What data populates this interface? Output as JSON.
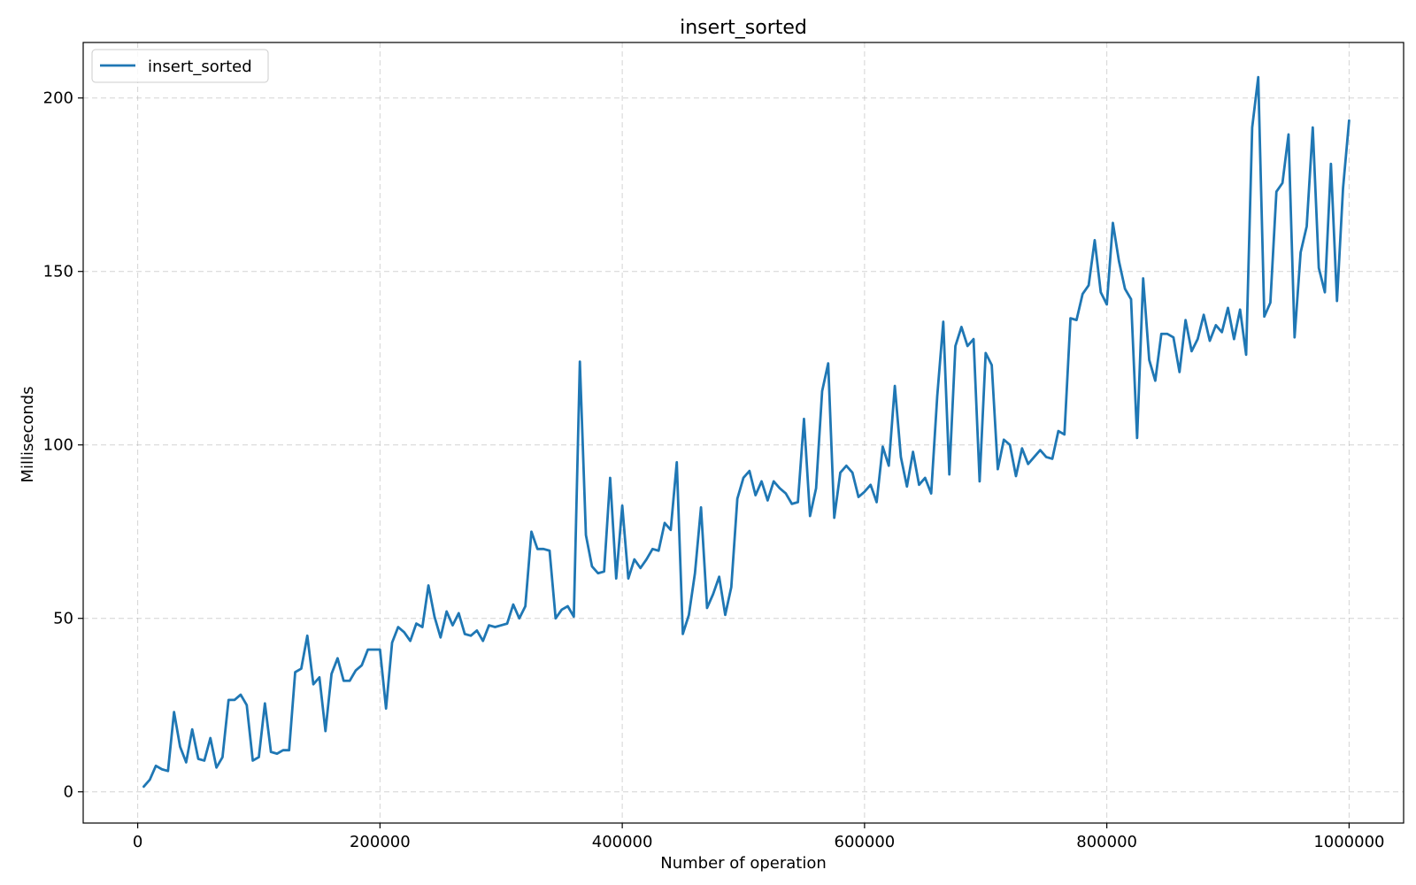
{
  "chart_data": {
    "type": "line",
    "title": "insert_sorted",
    "xlabel": "Number of operation",
    "ylabel": "Milliseconds",
    "xlim": [
      -45000,
      1045000
    ],
    "ylim": [
      -9,
      216
    ],
    "xticks": [
      0,
      200000,
      400000,
      600000,
      800000,
      1000000
    ],
    "yticks": [
      0,
      50,
      100,
      150,
      200
    ],
    "grid": true,
    "legend": {
      "placement": "top-left",
      "entries": [
        "insert_sorted"
      ]
    },
    "series": [
      {
        "name": "insert_sorted",
        "color": "#1f77b4",
        "x": [
          5000,
          10000,
          15000,
          20000,
          25000,
          30000,
          35000,
          40000,
          45000,
          50000,
          55000,
          60000,
          65000,
          70000,
          75000,
          80000,
          85000,
          90000,
          95000,
          100000,
          105000,
          110000,
          115000,
          120000,
          125000,
          130000,
          135000,
          140000,
          145000,
          150000,
          155000,
          160000,
          165000,
          170000,
          175000,
          180000,
          185000,
          190000,
          195000,
          200000,
          205000,
          210000,
          215000,
          220000,
          225000,
          230000,
          235000,
          240000,
          245000,
          250000,
          255000,
          260000,
          265000,
          270000,
          275000,
          280000,
          285000,
          290000,
          295000,
          300000,
          305000,
          310000,
          315000,
          320000,
          325000,
          330000,
          335000,
          340000,
          345000,
          350000,
          355000,
          360000,
          365000,
          370000,
          375000,
          380000,
          385000,
          390000,
          395000,
          400000,
          405000,
          410000,
          415000,
          420000,
          425000,
          430000,
          435000,
          440000,
          445000,
          450000,
          455000,
          460000,
          465000,
          470000,
          475000,
          480000,
          485000,
          490000,
          495000,
          500000,
          505000,
          510000,
          515000,
          520000,
          525000,
          530000,
          535000,
          540000,
          545000,
          550000,
          555000,
          560000,
          565000,
          570000,
          575000,
          580000,
          585000,
          590000,
          595000,
          600000,
          605000,
          610000,
          615000,
          620000,
          625000,
          630000,
          635000,
          640000,
          645000,
          650000,
          655000,
          660000,
          665000,
          670000,
          675000,
          680000,
          685000,
          690000,
          695000,
          700000,
          705000,
          710000,
          715000,
          720000,
          725000,
          730000,
          735000,
          740000,
          745000,
          750000,
          755000,
          760000,
          765000,
          770000,
          775000,
          780000,
          785000,
          790000,
          795000,
          800000,
          805000,
          810000,
          815000,
          820000,
          825000,
          830000,
          835000,
          840000,
          845000,
          850000,
          855000,
          860000,
          865000,
          870000,
          875000,
          880000,
          885000,
          890000,
          895000,
          900000,
          905000,
          910000,
          915000,
          920000,
          925000,
          930000,
          935000,
          940000,
          945000,
          950000,
          955000,
          960000,
          965000,
          970000,
          975000,
          980000,
          985000,
          990000,
          995000,
          1000000
        ],
        "y": [
          1.5,
          3.5,
          7.5,
          6.5,
          6,
          23,
          13,
          8.5,
          18,
          9.5,
          9,
          15.5,
          7,
          10,
          26.5,
          26.5,
          28,
          25,
          9,
          10,
          25.5,
          11.5,
          11,
          12,
          12,
          34.5,
          35.5,
          45,
          31,
          33,
          17.5,
          34,
          38.5,
          32,
          32,
          35,
          36.5,
          41,
          41,
          41,
          24,
          43,
          47.5,
          46,
          43.5,
          48.5,
          47.5,
          59.5,
          50.5,
          44.5,
          52,
          48,
          51.5,
          45.5,
          45,
          46.5,
          43.5,
          48,
          47.5,
          48,
          48.5,
          54,
          50,
          53.5,
          75,
          70,
          70,
          69.5,
          50,
          52.5,
          53.5,
          50.5,
          124,
          74,
          65,
          63,
          63.5,
          90.5,
          61.5,
          82.5,
          61.5,
          67,
          64.5,
          67,
          70,
          69.5,
          77.5,
          75.5,
          95,
          45.5,
          51,
          63,
          82,
          53,
          57,
          62,
          51,
          59,
          84.5,
          90.5,
          92.5,
          85.5,
          89.5,
          84,
          89.5,
          87.5,
          86,
          83,
          83.5,
          107.5,
          79.5,
          87.5,
          115.5,
          123.5,
          79,
          92,
          94,
          92,
          85,
          86.5,
          88.5,
          83.5,
          99.5,
          94,
          117,
          96.5,
          88,
          98,
          88.5,
          90.5,
          86,
          114,
          135.5,
          91.5,
          128.5,
          134,
          128.5,
          130.5,
          89.5,
          126.5,
          123,
          93,
          101.5,
          100,
          91,
          99,
          94.5,
          96.5,
          98.5,
          96.5,
          96,
          104,
          103,
          136.5,
          136,
          143.5,
          146,
          159,
          144,
          140.5,
          164,
          153,
          145,
          142,
          102,
          148,
          124.5,
          118.5,
          132,
          132,
          131,
          121,
          136,
          127,
          130.5,
          137.5,
          130,
          134.5,
          132.5,
          139.5,
          130.5,
          139,
          126,
          191.5,
          206,
          137,
          141,
          173,
          175.5,
          189.5,
          131,
          155.5,
          163,
          191.5,
          151,
          144,
          181,
          141.5,
          174,
          193.5
        ]
      }
    ]
  }
}
